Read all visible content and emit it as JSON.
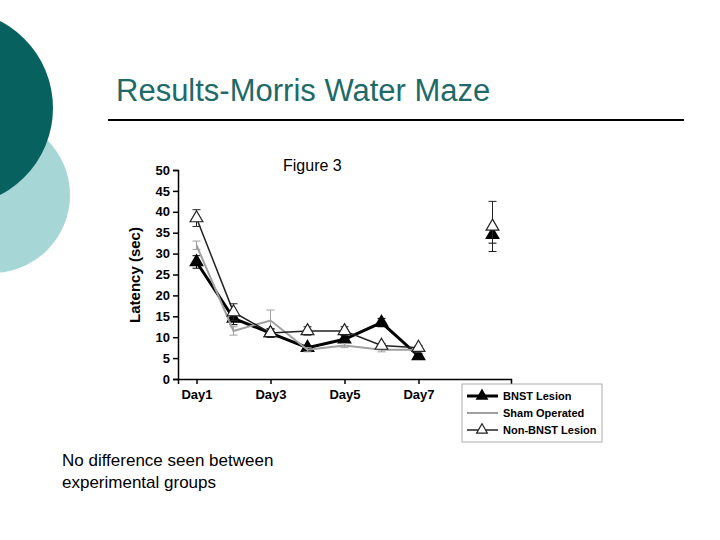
{
  "chart_data": {
    "type": "line",
    "title": "Results-Morris Water Maze",
    "subtitle": "Figure 3",
    "y_label": "Latency (sec)",
    "annotations": [
      "No difference seen between",
      "experimental groups"
    ],
    "x": [
      1,
      2,
      3,
      4,
      5,
      6,
      7,
      8,
      9
    ],
    "xlim": [
      0.5,
      9.5
    ],
    "xticks": [
      {
        "value": 1,
        "label": "Day1"
      },
      {
        "value": 3,
        "label": "Day3"
      },
      {
        "value": 5,
        "label": "Day5"
      },
      {
        "value": 7,
        "label": "Day7"
      }
    ],
    "ylim": [
      0,
      50
    ],
    "yticks": [
      0,
      5,
      10,
      15,
      20,
      25,
      30,
      35,
      40,
      45,
      50
    ],
    "grid": false,
    "legend": "lower right",
    "series": [
      {
        "name": "BNST Lesion",
        "color": "#000000",
        "marker": "triangle-filled",
        "line_style": "solid",
        "values": [
          28,
          14.5,
          11,
          7.5,
          9.5,
          13.5,
          5.5,
          null,
          34.5
        ],
        "errors": [
          1.5,
          1.5,
          1,
          0.5,
          1,
          1,
          0.5,
          null,
          2
        ]
      },
      {
        "name": "Sham Operated",
        "color": "#a0a0a0",
        "marker": "none",
        "line_style": "solid",
        "values": [
          32,
          11.5,
          14,
          7,
          8,
          7,
          7,
          null,
          null
        ],
        "errors": [
          1,
          1,
          2.5,
          0.5,
          0.5,
          0.5,
          0.5,
          null,
          null
        ]
      },
      {
        "name": "Non-BNST Lesion",
        "color": "#222222",
        "marker": "triangle-open",
        "line_style": "solid",
        "values": [
          38.5,
          16,
          11,
          11.5,
          11.5,
          8,
          7.5,
          null,
          36.5
        ],
        "errors": [
          2,
          2,
          1,
          1,
          1,
          0.5,
          0.5,
          null,
          6
        ]
      }
    ]
  }
}
